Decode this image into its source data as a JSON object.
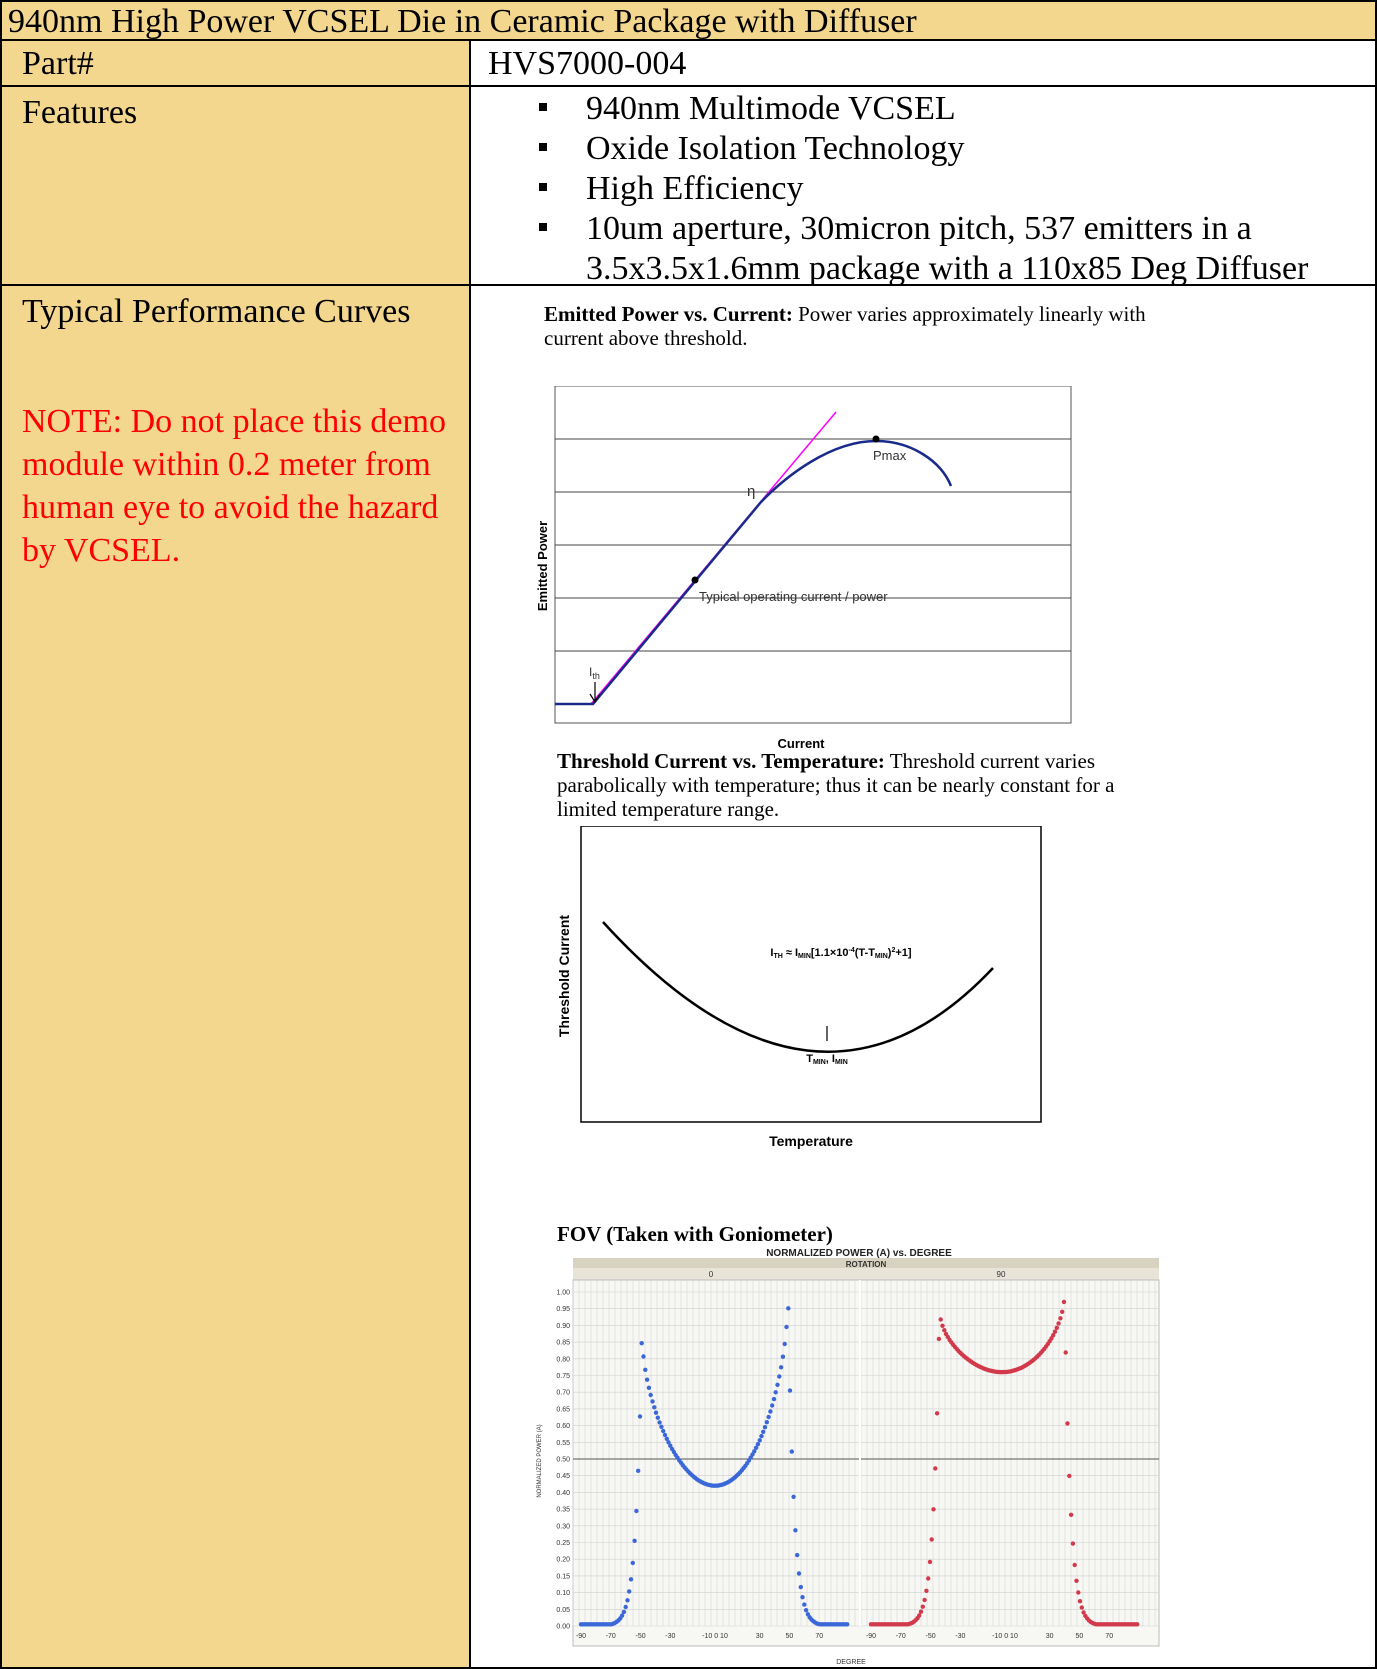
{
  "title": "940nm High Power VCSEL Die in Ceramic Package with Diffuser",
  "part": {
    "label": "Part#",
    "value": "HVS7000-004"
  },
  "features": {
    "label": "Features",
    "items": [
      "940nm Multimode VCSEL",
      "Oxide Isolation Technology",
      "High Efficiency",
      "10um aperture, 30micron pitch, 537 emitters in a 3.5x3.5x1.6mm package with a 110x85 Deg Diffuser"
    ]
  },
  "curves": {
    "label": "Typical Performance Curves",
    "note": "NOTE: Do not place this demo module within 0.2 meter from human eye to avoid the hazard by VCSEL."
  },
  "colors": {
    "label_bg": "#f3d78e",
    "note": "#ff0000",
    "series_0": "#3a68d8",
    "series_90": "#d23a4c",
    "pi_curve": "#1a2a8a",
    "fit_line": "#ff00ff"
  },
  "captions": {
    "pi_heading": "Emitted Power vs. Current:",
    "pi_text": "Power varies approximately linearly with current above threshold.",
    "th_heading": "Threshold Current vs. Temperature:",
    "th_text": "Threshold current varies parabolically with temperature; thus it can be nearly constant for a limited temperature range.",
    "fov_heading": "FOV (Taken with Goniometer)"
  },
  "chart_data": [
    {
      "type": "line",
      "xlabel": "Current",
      "ylabel": "Emitted Power",
      "annotations": {
        "pmax": "Pmax",
        "eta": "η",
        "operating": "Typical operating current / power",
        "ith_main": "I",
        "ith_sub": "th"
      },
      "grid": "horizontal"
    },
    {
      "type": "line",
      "xlabel": "Temperature",
      "ylabel": "Threshold Current",
      "annotations": {
        "formula": "I_TH ≈ I_MIN[1.1×10^-4(T-T_MIN)^2+1]",
        "min": "T_MIN, I_MIN"
      }
    },
    {
      "type": "scatter",
      "title": "NORMALIZED POWER (A) vs. DEGREE",
      "subtitle": "ROTATION",
      "xlabel": "DEGREE",
      "ylabel": "NORMALIZED POWER (A)",
      "ylim": [
        0,
        1
      ],
      "yticks": [
        "0.00",
        "0.05",
        "0.10",
        "0.15",
        "0.20",
        "0.25",
        "0.30",
        "0.35",
        "0.40",
        "0.45",
        "0.50",
        "0.55",
        "0.60",
        "0.65",
        "0.70",
        "0.75",
        "0.80",
        "0.85",
        "0.90",
        "0.95",
        "1.00"
      ],
      "xticks": [
        "-90",
        "-70",
        "-50",
        "-30",
        "-10 0 10",
        "30",
        "50",
        "70"
      ],
      "panels": [
        {
          "name": "0",
          "min_value": 0.42,
          "peaks": [
            [
              -47,
              0.89
            ],
            [
              47,
              1.0
            ]
          ]
        },
        {
          "name": "90",
          "min_value": 0.76,
          "peaks": [
            [
              -42,
              0.95
            ],
            [
              38,
              1.0
            ]
          ]
        }
      ]
    }
  ]
}
